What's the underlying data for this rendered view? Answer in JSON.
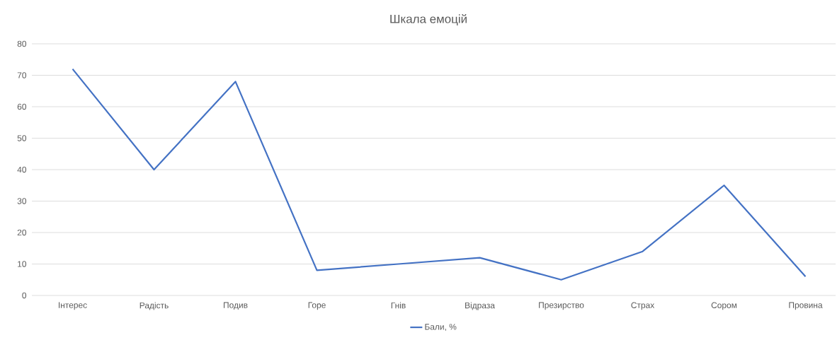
{
  "chart_data": {
    "type": "line",
    "title": "Шкала емоцій",
    "categories": [
      "Інтерес",
      "Радість",
      "Подив",
      "Горе",
      "Гнів",
      "Відраза",
      "Презирство",
      "Страх",
      "Сором",
      "Провина"
    ],
    "series": [
      {
        "name": "Бали, %",
        "color": "#4472c4",
        "values": [
          72,
          40,
          68,
          8,
          10,
          12,
          5,
          14,
          35,
          6
        ]
      }
    ],
    "ylim": [
      0,
      80
    ],
    "yticks": [
      0,
      10,
      20,
      30,
      40,
      50,
      60,
      70,
      80
    ],
    "grid": "y",
    "legend": "bottom",
    "marker": "none",
    "line_style": "solid"
  }
}
